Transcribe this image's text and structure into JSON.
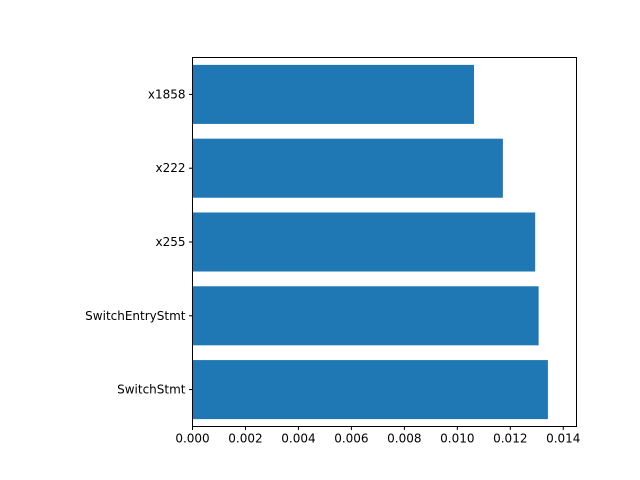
{
  "chart_data": {
    "type": "bar",
    "orientation": "horizontal",
    "categories": [
      "SwitchStmt",
      "SwitchEntryStmt",
      "x255",
      "x222",
      "x1858"
    ],
    "values": [
      0.01342,
      0.01307,
      0.01294,
      0.01172,
      0.01063
    ],
    "xlim": [
      0,
      0.0145
    ],
    "xticks": [
      "0.000",
      "0.002",
      "0.004",
      "0.006",
      "0.008",
      "0.010",
      "0.012",
      "0.014"
    ],
    "bar_color": "#1f77b4",
    "grid": false,
    "title": "",
    "xlabel": "",
    "ylabel": ""
  }
}
